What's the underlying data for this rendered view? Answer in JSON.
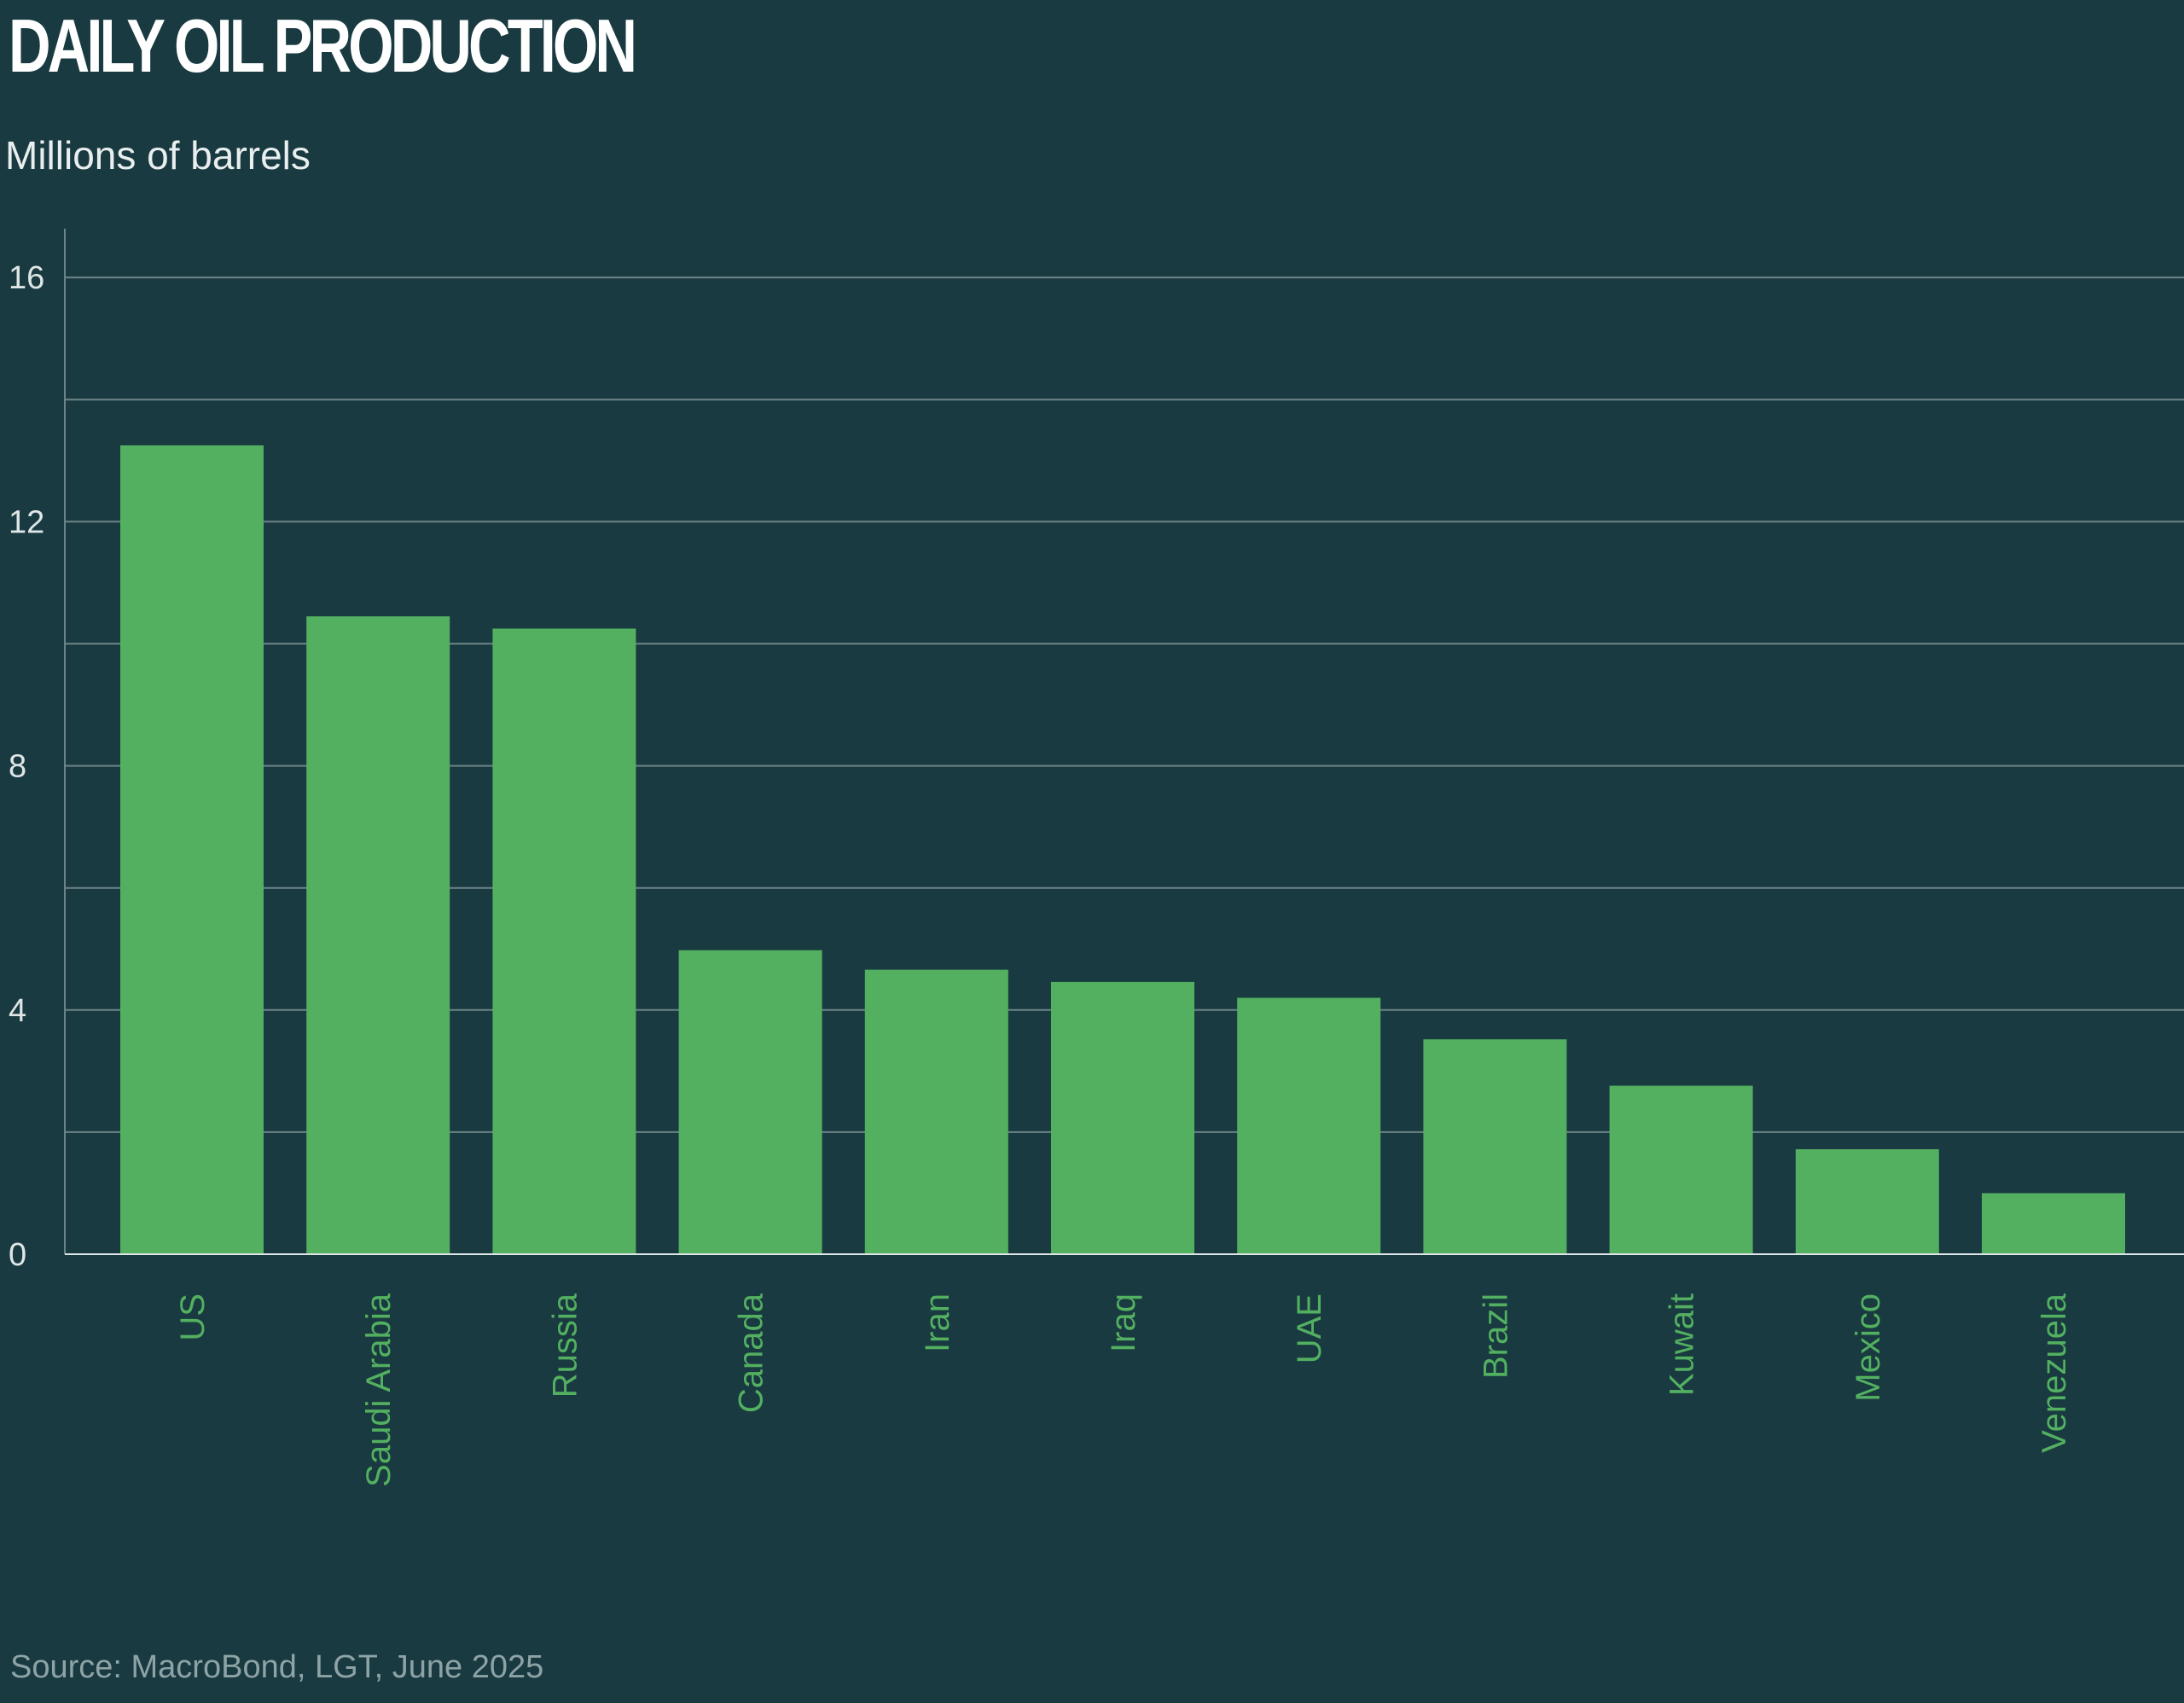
{
  "chart_data": {
    "type": "bar",
    "title": "DAILY OIL PRODUCTION",
    "subtitle": "Millions of barrels",
    "source": "Source: MacroBond, LGT, June 2025",
    "xlabel": "",
    "ylabel": "Millions of barrels",
    "categories": [
      "US",
      "Saudi Arabia",
      "Russia",
      "Canada",
      "Iran",
      "Iraq",
      "UAE",
      "Brazil",
      "Kuwait",
      "Mexico",
      "Venezuela"
    ],
    "values": [
      13.25,
      10.45,
      10.25,
      4.98,
      4.66,
      4.46,
      4.2,
      3.52,
      2.76,
      1.72,
      1.0
    ],
    "ylim": [
      0,
      16.8
    ],
    "yticks": [
      0,
      4,
      8,
      12,
      16
    ],
    "minor_gridlines": [
      2,
      6,
      10,
      14
    ],
    "grid": true,
    "legend": "none",
    "colors": {
      "background": "#193a41",
      "bar": "#53b060",
      "tick_label": "#dfe6e6",
      "category_label": "#53b060",
      "gridline": "#6c8487"
    }
  }
}
